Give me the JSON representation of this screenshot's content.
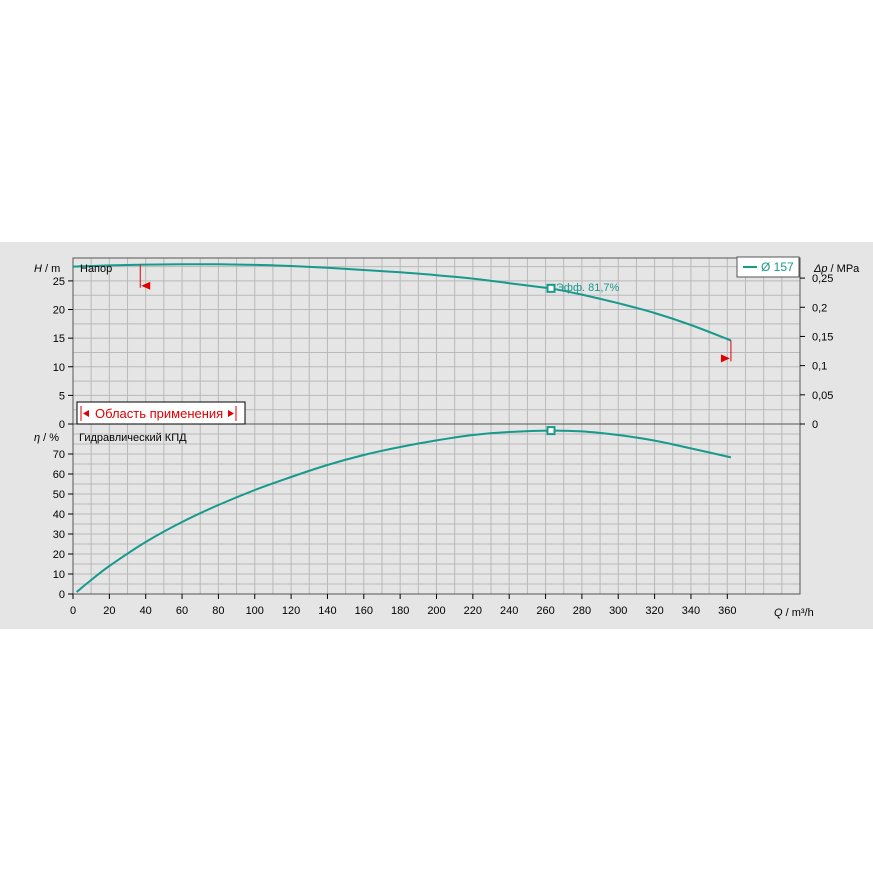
{
  "chart_data": [
    {
      "type": "line",
      "panel": "head",
      "title": "Напор",
      "y_axis_symbol": "H",
      "y_axis_unit": "m",
      "y2_axis_symbol": "Δp",
      "y2_axis_unit": "MPa",
      "ylim": [
        0,
        29
      ],
      "y_ticks": [
        0,
        5,
        10,
        15,
        20,
        25
      ],
      "y2_ticks": [
        "0",
        "0,05",
        "0,1",
        "0,15",
        "0,2",
        "0,25"
      ],
      "y2_tick_values": [
        0,
        0.05,
        0.1,
        0.15,
        0.2,
        0.25
      ],
      "grid": true,
      "legend": {
        "position": "top-right",
        "entries": [
          "Ø 157"
        ]
      },
      "series": [
        {
          "name": "Ø 157",
          "color": "#17998c",
          "x": [
            0,
            20,
            40,
            60,
            80,
            100,
            120,
            140,
            160,
            180,
            200,
            220,
            240,
            260,
            263,
            280,
            300,
            320,
            340,
            362
          ],
          "y": [
            27.5,
            27.7,
            27.85,
            27.9,
            27.9,
            27.8,
            27.6,
            27.3,
            26.9,
            26.5,
            26.0,
            25.4,
            24.6,
            23.8,
            23.7,
            22.6,
            21.1,
            19.4,
            17.3,
            14.6
          ]
        }
      ],
      "operating_point": {
        "x": 263,
        "y": 23.7,
        "label": "Эфф.  81,7%"
      },
      "range_markers": {
        "min_x": 37,
        "max_x": 362
      },
      "annotation": "Область применения"
    },
    {
      "type": "line",
      "panel": "efficiency",
      "title": "Гидравлический КПД",
      "y_axis_symbol": "η",
      "y_axis_unit": "%",
      "ylim": [
        0,
        85
      ],
      "y_ticks": [
        0,
        10,
        20,
        30,
        40,
        50,
        60,
        70
      ],
      "grid": true,
      "series": [
        {
          "name": "Ø 157",
          "color": "#17998c",
          "x": [
            2,
            10,
            20,
            40,
            60,
            80,
            100,
            120,
            140,
            160,
            180,
            200,
            220,
            240,
            263,
            280,
            300,
            320,
            340,
            362
          ],
          "y": [
            1,
            7,
            14,
            26,
            36,
            44.5,
            52,
            58.5,
            64.5,
            69.5,
            73.5,
            76.8,
            79.5,
            81.0,
            81.7,
            81.3,
            79.5,
            76.7,
            72.8,
            68.3
          ]
        }
      ],
      "operating_point": {
        "x": 263,
        "y": 81.7
      }
    }
  ],
  "x_axis": {
    "symbol": "Q",
    "unit": "m³/h",
    "xlim": [
      0,
      400
    ],
    "ticks": [
      0,
      20,
      40,
      60,
      80,
      100,
      120,
      140,
      160,
      180,
      200,
      220,
      240,
      260,
      280,
      300,
      320,
      340,
      360
    ]
  },
  "labels": {
    "head_title": "Напор",
    "eff_title": "Гидравлический КПД",
    "op_label": "Эфф.  81,7%",
    "annotation": "Область применения",
    "legend_entry": "Ø 157",
    "head_y_sym": "H",
    "head_y_unit": " / m",
    "dp_sym": "Δp",
    "dp_unit": " / MPa",
    "eff_y_sym": "η",
    "eff_y_unit": " / %",
    "x_sym": "Q",
    "x_unit": " / m³/h"
  }
}
